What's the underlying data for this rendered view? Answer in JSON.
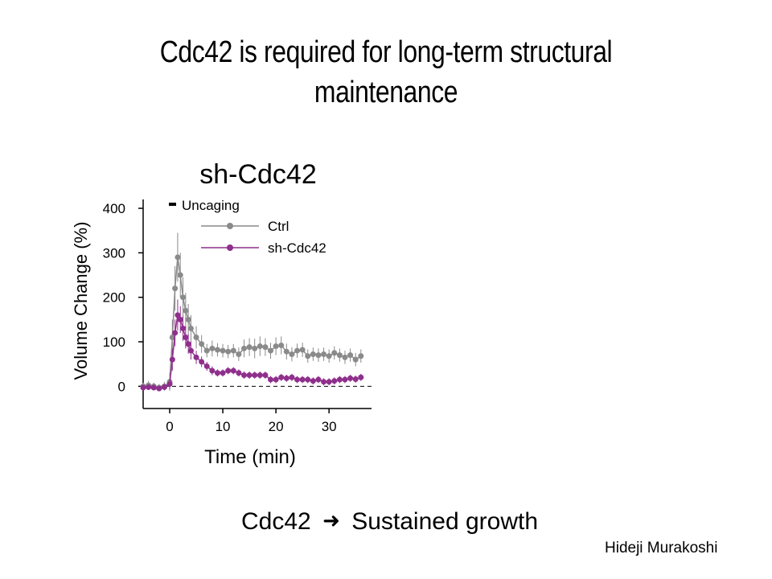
{
  "slide": {
    "title_line1": "Cdc42 is required for long-term structural",
    "title_line2": "maintenance",
    "conclusion_left": "Cdc42",
    "conclusion_right": "Sustained growth",
    "arrow_icon": "right-arrow-icon",
    "author": "Hideji Murakoshi"
  },
  "chart_data": {
    "type": "line",
    "title": "sh-Cdc42",
    "xlabel": "Time (min)",
    "ylabel": "Volume Change (%)",
    "xlim": [
      -5,
      38
    ],
    "ylim": [
      -50,
      420
    ],
    "xticks": [
      "0",
      "10",
      "20",
      "30"
    ],
    "yticks": [
      "0",
      "100",
      "200",
      "300",
      "400"
    ],
    "grid": false,
    "legend_position": "top-left",
    "annotation": "Uncaging",
    "baseline": 0,
    "series": [
      {
        "name": "Ctrl",
        "color": "#8a8a8a",
        "x": [
          -5,
          -4,
          -3,
          -2,
          -1,
          0,
          0.5,
          1,
          1.5,
          2,
          2.5,
          3,
          3.5,
          4,
          5,
          6,
          7,
          8,
          9,
          10,
          11,
          12,
          13,
          14,
          15,
          16,
          17,
          18,
          19,
          20,
          21,
          22,
          23,
          24,
          25,
          26,
          27,
          28,
          29,
          30,
          31,
          32,
          33,
          34,
          35,
          36
        ],
        "y": [
          0,
          2,
          0,
          -3,
          0,
          10,
          110,
          220,
          290,
          250,
          200,
          170,
          150,
          130,
          110,
          95,
          80,
          85,
          82,
          80,
          78,
          80,
          72,
          85,
          88,
          85,
          90,
          88,
          80,
          90,
          92,
          78,
          72,
          80,
          82,
          68,
          72,
          70,
          72,
          68,
          75,
          70,
          65,
          70,
          60,
          68
        ],
        "errors": [
          8,
          10,
          8,
          8,
          10,
          20,
          40,
          50,
          55,
          50,
          45,
          40,
          35,
          30,
          25,
          20,
          15,
          18,
          15,
          15,
          15,
          15,
          15,
          20,
          20,
          22,
          22,
          20,
          18,
          20,
          20,
          18,
          16,
          16,
          16,
          15,
          15,
          15,
          15,
          15,
          15,
          15,
          15,
          15,
          15,
          15
        ]
      },
      {
        "name": "sh-Cdc42",
        "color": "#8f2f8c",
        "x": [
          -5,
          -4,
          -3,
          -2,
          -1,
          0,
          0.5,
          1,
          1.5,
          2,
          2.5,
          3,
          3.5,
          4,
          5,
          6,
          7,
          8,
          9,
          10,
          11,
          12,
          13,
          14,
          15,
          16,
          17,
          18,
          19,
          20,
          21,
          22,
          23,
          24,
          25,
          26,
          27,
          28,
          29,
          30,
          31,
          32,
          33,
          34,
          35,
          36
        ],
        "y": [
          -3,
          -2,
          -3,
          -5,
          -2,
          5,
          60,
          120,
          160,
          150,
          130,
          110,
          95,
          80,
          65,
          55,
          45,
          35,
          30,
          30,
          35,
          35,
          30,
          25,
          25,
          25,
          25,
          25,
          15,
          15,
          20,
          18,
          20,
          15,
          15,
          15,
          12,
          15,
          10,
          10,
          12,
          15,
          15,
          18,
          16,
          20
        ],
        "errors": [
          6,
          6,
          6,
          6,
          6,
          12,
          25,
          30,
          35,
          30,
          28,
          25,
          22,
          20,
          15,
          12,
          10,
          10,
          8,
          8,
          8,
          8,
          8,
          8,
          8,
          8,
          8,
          8,
          8,
          8,
          8,
          8,
          8,
          8,
          8,
          8,
          8,
          8,
          8,
          8,
          8,
          8,
          8,
          8,
          8,
          8
        ]
      }
    ]
  }
}
